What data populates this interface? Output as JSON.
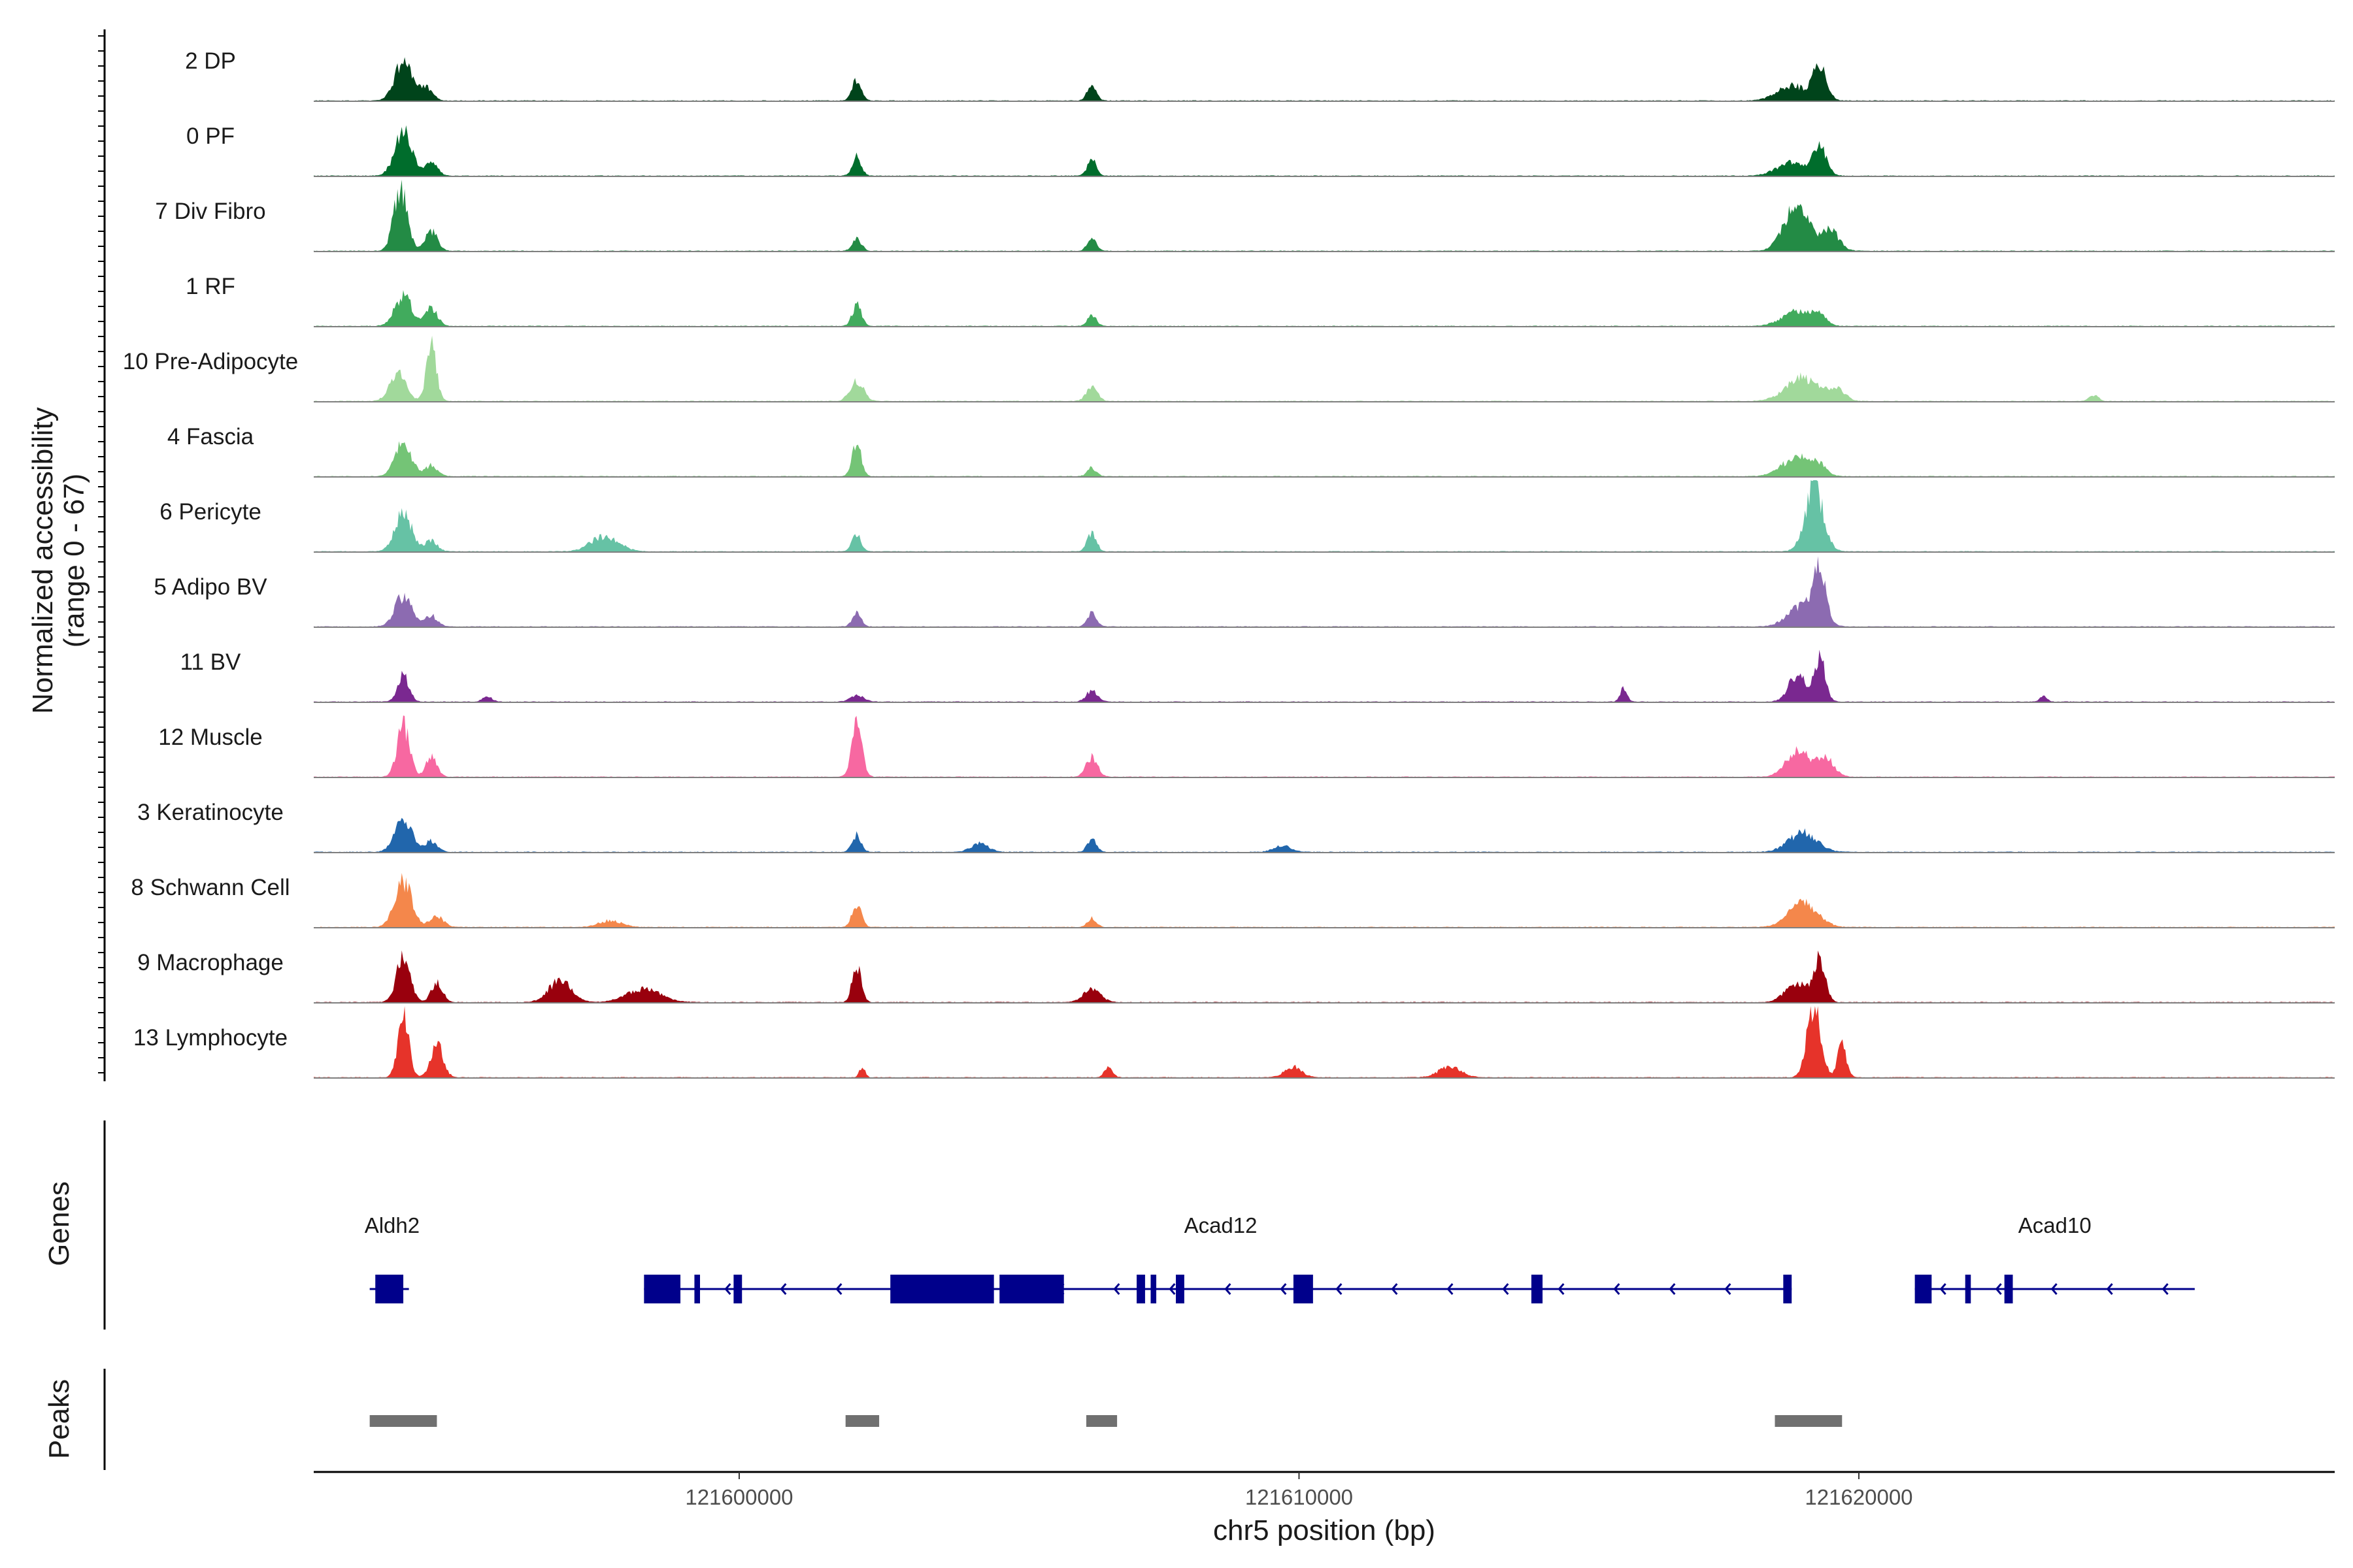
{
  "chart_data": {
    "type": "area",
    "title": "",
    "xlabel": "chr5 position (bp)",
    "ylabel": "Normalized accessibility",
    "ylabel_sub": "(range 0 - 67)",
    "xlim": [
      121592400,
      121628500
    ],
    "ylim": [
      0,
      67
    ],
    "x_ticks": [
      121600000,
      121610000,
      121620000
    ],
    "x_tick_labels": [
      "121600000",
      "121610000",
      "121620000"
    ],
    "tracks": [
      {
        "name": "2 DP",
        "color": "#00441b",
        "peaks": [
          [
            121594000,
            36,
            150
          ],
          [
            121594400,
            12,
            120
          ],
          [
            121602100,
            20,
            80
          ],
          [
            121606300,
            15,
            80
          ],
          [
            121618800,
            14,
            260
          ],
          [
            121619300,
            30,
            120
          ]
        ]
      },
      {
        "name": "0 PF",
        "color": "#006d2c",
        "peaks": [
          [
            121594000,
            42,
            150
          ],
          [
            121594500,
            12,
            110
          ],
          [
            121602100,
            18,
            80
          ],
          [
            121606300,
            15,
            80
          ],
          [
            121618800,
            12,
            260
          ],
          [
            121619300,
            26,
            120
          ]
        ]
      },
      {
        "name": "7 Div Fibro",
        "color": "#238b45",
        "peaks": [
          [
            121593950,
            58,
            120
          ],
          [
            121594500,
            18,
            110
          ],
          [
            121602100,
            12,
            80
          ],
          [
            121606300,
            12,
            80
          ],
          [
            121618900,
            45,
            220
          ],
          [
            121619500,
            18,
            150
          ]
        ]
      },
      {
        "name": "1 RF",
        "color": "#41ab5d",
        "peaks": [
          [
            121594000,
            28,
            150
          ],
          [
            121594500,
            16,
            110
          ],
          [
            121602100,
            20,
            80
          ],
          [
            121606300,
            10,
            80
          ],
          [
            121618900,
            14,
            260
          ],
          [
            121619300,
            8,
            120
          ]
        ]
      },
      {
        "name": "10 Pre-Adipocyte",
        "color": "#a1d99b",
        "peaks": [
          [
            121593900,
            28,
            140
          ],
          [
            121594500,
            50,
            90
          ],
          [
            121602100,
            18,
            120
          ],
          [
            121606300,
            14,
            100
          ],
          [
            121619000,
            22,
            300
          ],
          [
            121619600,
            10,
            150
          ],
          [
            121624200,
            6,
            80
          ]
        ]
      },
      {
        "name": "4 Fascia",
        "color": "#74c476",
        "peaks": [
          [
            121594000,
            30,
            150
          ],
          [
            121594500,
            10,
            110
          ],
          [
            121602100,
            32,
            80
          ],
          [
            121606300,
            8,
            80
          ],
          [
            121618900,
            18,
            260
          ],
          [
            121619300,
            8,
            120
          ]
        ]
      },
      {
        "name": "6 Pericyte",
        "color": "#66c2a5",
        "peaks": [
          [
            121594000,
            35,
            150
          ],
          [
            121594500,
            10,
            110
          ],
          [
            121597600,
            14,
            250
          ],
          [
            121602100,
            16,
            80
          ],
          [
            121606300,
            18,
            80
          ],
          [
            121619200,
            60,
            160
          ]
        ]
      },
      {
        "name": "5 Adipo BV",
        "color": "#8c6bb1",
        "peaks": [
          [
            121594000,
            28,
            150
          ],
          [
            121594500,
            10,
            110
          ],
          [
            121602100,
            12,
            80
          ],
          [
            121606300,
            12,
            80
          ],
          [
            121619000,
            20,
            250
          ],
          [
            121619300,
            48,
            110
          ]
        ]
      },
      {
        "name": "11 BV",
        "color": "#7a2890",
        "peaks": [
          [
            121594000,
            25,
            100
          ],
          [
            121595500,
            5,
            80
          ],
          [
            121602100,
            6,
            120
          ],
          [
            121606300,
            10,
            100
          ],
          [
            121615800,
            14,
            60
          ],
          [
            121618900,
            25,
            150
          ],
          [
            121619300,
            40,
            100
          ],
          [
            121623300,
            5,
            60
          ]
        ]
      },
      {
        "name": "12 Muscle",
        "color": "#f768a1",
        "peaks": [
          [
            121594000,
            48,
            110
          ],
          [
            121594500,
            18,
            100
          ],
          [
            121602100,
            52,
            90
          ],
          [
            121606300,
            18,
            100
          ],
          [
            121618900,
            25,
            200
          ],
          [
            121619400,
            18,
            150
          ]
        ]
      },
      {
        "name": "3 Keratinocyte",
        "color": "#2166ac",
        "peaks": [
          [
            121594000,
            30,
            150
          ],
          [
            121594500,
            10,
            110
          ],
          [
            121602100,
            16,
            80
          ],
          [
            121604300,
            8,
            150
          ],
          [
            121606300,
            12,
            80
          ],
          [
            121609700,
            6,
            150
          ],
          [
            121619000,
            18,
            250
          ]
        ]
      },
      {
        "name": "8 Schwann Cell",
        "color": "#f4874b",
        "peaks": [
          [
            121594000,
            42,
            150
          ],
          [
            121594600,
            10,
            120
          ],
          [
            121597700,
            6,
            200
          ],
          [
            121602100,
            22,
            80
          ],
          [
            121606300,
            8,
            80
          ],
          [
            121619000,
            24,
            250
          ]
        ]
      },
      {
        "name": "9 Macrophage",
        "color": "#99000d",
        "peaks": [
          [
            121594000,
            45,
            120
          ],
          [
            121594600,
            18,
            100
          ],
          [
            121596800,
            20,
            200
          ],
          [
            121598300,
            12,
            300
          ],
          [
            121602100,
            35,
            80
          ],
          [
            121606300,
            12,
            150
          ],
          [
            121618900,
            18,
            200
          ],
          [
            121619300,
            38,
            100
          ]
        ]
      },
      {
        "name": "13 Lymphocyte",
        "color": "#e6332a",
        "peaks": [
          [
            121594000,
            55,
            100
          ],
          [
            121594600,
            30,
            110
          ],
          [
            121602200,
            10,
            50
          ],
          [
            121606600,
            10,
            70
          ],
          [
            121609900,
            10,
            150
          ],
          [
            121612700,
            10,
            200
          ],
          [
            121619200,
            70,
            120
          ],
          [
            121619700,
            30,
            80
          ]
        ]
      }
    ],
    "genes": [
      {
        "name": "Aldh2",
        "label_x": 121593800,
        "start": 121593400,
        "end": 121594100,
        "exons": [
          [
            121593500,
            121594000
          ]
        ]
      },
      {
        "name": "Acad12",
        "label_x": 121608600,
        "start": 121598300,
        "end": 121618800,
        "exons": [
          [
            121598300,
            121598950
          ],
          [
            121599200,
            121599300
          ],
          [
            121599900,
            121600050
          ],
          [
            121602700,
            121604550
          ],
          [
            121604650,
            121605800
          ],
          [
            121607100,
            121607250
          ],
          [
            121607350,
            121607450
          ],
          [
            121607800,
            121607950
          ],
          [
            121609900,
            121610250
          ],
          [
            121614150,
            121614350
          ],
          [
            121618650,
            121618800
          ]
        ]
      },
      {
        "name": "Acad10",
        "label_x": 121623500,
        "start": 121621000,
        "end": 121626000,
        "exons": [
          [
            121621000,
            121621300
          ],
          [
            121621900,
            121622000
          ],
          [
            121622600,
            121622750
          ]
        ]
      }
    ],
    "peak_regions": [
      [
        121593400,
        121594600
      ],
      [
        121601900,
        121602500
      ],
      [
        121606200,
        121606750
      ],
      [
        121618500,
        121619700
      ]
    ],
    "side_labels": {
      "genes": "Genes",
      "peaks": "Peaks"
    }
  }
}
